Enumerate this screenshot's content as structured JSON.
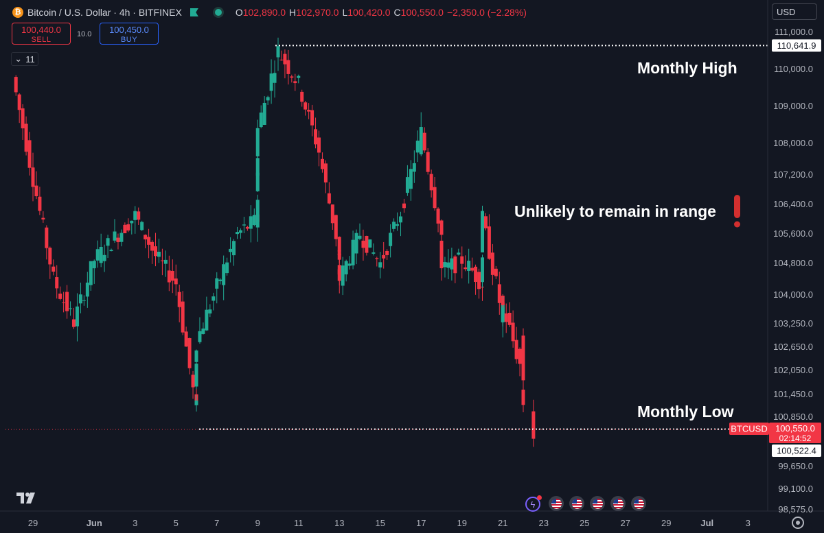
{
  "header": {
    "symbol": "Bitcoin / U.S. Dollar · 4h · BITFINEX",
    "ohlc": [
      {
        "k": "O",
        "v": "102,890.0"
      },
      {
        "k": "H",
        "v": "102,970.0"
      },
      {
        "k": "L",
        "v": "100,420.0"
      },
      {
        "k": "C",
        "v": "100,550.0"
      },
      {
        "k": "",
        "v": "−2,350.0 (−2.28%)"
      }
    ]
  },
  "trade": {
    "sell_price": "100,440.0",
    "sell_label": "SELL",
    "spread": "10.0",
    "buy_price": "100,450.0",
    "buy_label": "BUY"
  },
  "indicators_count": "11",
  "currency": "USD",
  "annotations": {
    "monthly_high": "Monthly High",
    "monthly_low": "Monthly Low",
    "unlikely": "Unlikely to remain in range"
  },
  "colors": {
    "up": "#22ab94",
    "down": "#f23645",
    "background": "#131722",
    "text": "#d1d4dc",
    "axis_text": "#b2b5be",
    "dotted": "#ffffff"
  },
  "icons": {
    "logo": "tradingview-logo-icon",
    "events": "us-flag-icon",
    "settings": "gear-icon"
  },
  "chart_data": {
    "type": "candlestick",
    "title": "Bitcoin / U.S. Dollar · 4h · BITFINEX",
    "timeframe": "4h",
    "y_ticks": [
      "111,000.0",
      "110,000.0",
      "109,000.0",
      "108,000.0",
      "107,200.0",
      "106,400.0",
      "105,600.0",
      "104,800.0",
      "104,000.0",
      "103,250.0",
      "102,650.0",
      "102,050.0",
      "101,450.0",
      "100,850.0",
      "99,650.0",
      "99,100.0",
      "98,575.0"
    ],
    "x_ticks": [
      "29",
      "Jun",
      "3",
      "5",
      "7",
      "9",
      "11",
      "13",
      "15",
      "17",
      "19",
      "21",
      "23",
      "25",
      "27",
      "29",
      "Jul",
      "3"
    ],
    "x_tick_dates": [
      "2025-05-29",
      "2025-06-01",
      "2025-06-03",
      "2025-06-05",
      "2025-06-07",
      "2025-06-09",
      "2025-06-11",
      "2025-06-13",
      "2025-06-15",
      "2025-06-17",
      "2025-06-19",
      "2025-06-21",
      "2025-06-23",
      "2025-06-25",
      "2025-06-27",
      "2025-06-29",
      "2025-07-01",
      "2025-07-03"
    ],
    "levels": {
      "monthly_high": {
        "price": 110641.9,
        "label": "110,641.9"
      },
      "monthly_low": {
        "price": 100522.4,
        "label": "100,522.4"
      },
      "last_price": {
        "price": 100550.0,
        "label": "100,550.0",
        "symbol": "BTCUSD",
        "countdown": "02:14:52"
      }
    },
    "swings": [
      {
        "date": "2025-05-28",
        "price": 109800
      },
      {
        "date": "2025-05-30",
        "price": 104400
      },
      {
        "date": "2025-05-31",
        "price": 103300
      },
      {
        "date": "2025-06-01",
        "price": 104900
      },
      {
        "date": "2025-06-02",
        "price": 105500
      },
      {
        "date": "2025-06-03",
        "price": 106100
      },
      {
        "date": "2025-06-04",
        "price": 105000
      },
      {
        "date": "2025-06-05",
        "price": 104300
      },
      {
        "date": "2025-06-06",
        "price": 101000
      },
      {
        "date": "2025-06-06",
        "price": 102800
      },
      {
        "date": "2025-06-07",
        "price": 104200
      },
      {
        "date": "2025-06-08",
        "price": 105600
      },
      {
        "date": "2025-06-09",
        "price": 106000
      },
      {
        "date": "2025-06-09",
        "price": 108400
      },
      {
        "date": "2025-06-10",
        "price": 110500
      },
      {
        "date": "2025-06-11",
        "price": 109600
      },
      {
        "date": "2025-06-12",
        "price": 107800
      },
      {
        "date": "2025-06-13",
        "price": 105100
      },
      {
        "date": "2025-06-13",
        "price": 104400
      },
      {
        "date": "2025-06-14",
        "price": 105600
      },
      {
        "date": "2025-06-15",
        "price": 104800
      },
      {
        "date": "2025-06-16",
        "price": 106200
      },
      {
        "date": "2025-06-17",
        "price": 108300
      },
      {
        "date": "2025-06-18",
        "price": 105600
      },
      {
        "date": "2025-06-18",
        "price": 104600
      },
      {
        "date": "2025-06-19",
        "price": 104900
      },
      {
        "date": "2025-06-20",
        "price": 104300
      },
      {
        "date": "2025-06-20",
        "price": 106000
      },
      {
        "date": "2025-06-21",
        "price": 103400
      },
      {
        "date": "2025-06-21",
        "price": 103700
      },
      {
        "date": "2025-06-22",
        "price": 101900
      },
      {
        "date": "2025-06-22",
        "price": 102800
      },
      {
        "date": "2025-06-22",
        "price": 100550
      }
    ]
  }
}
